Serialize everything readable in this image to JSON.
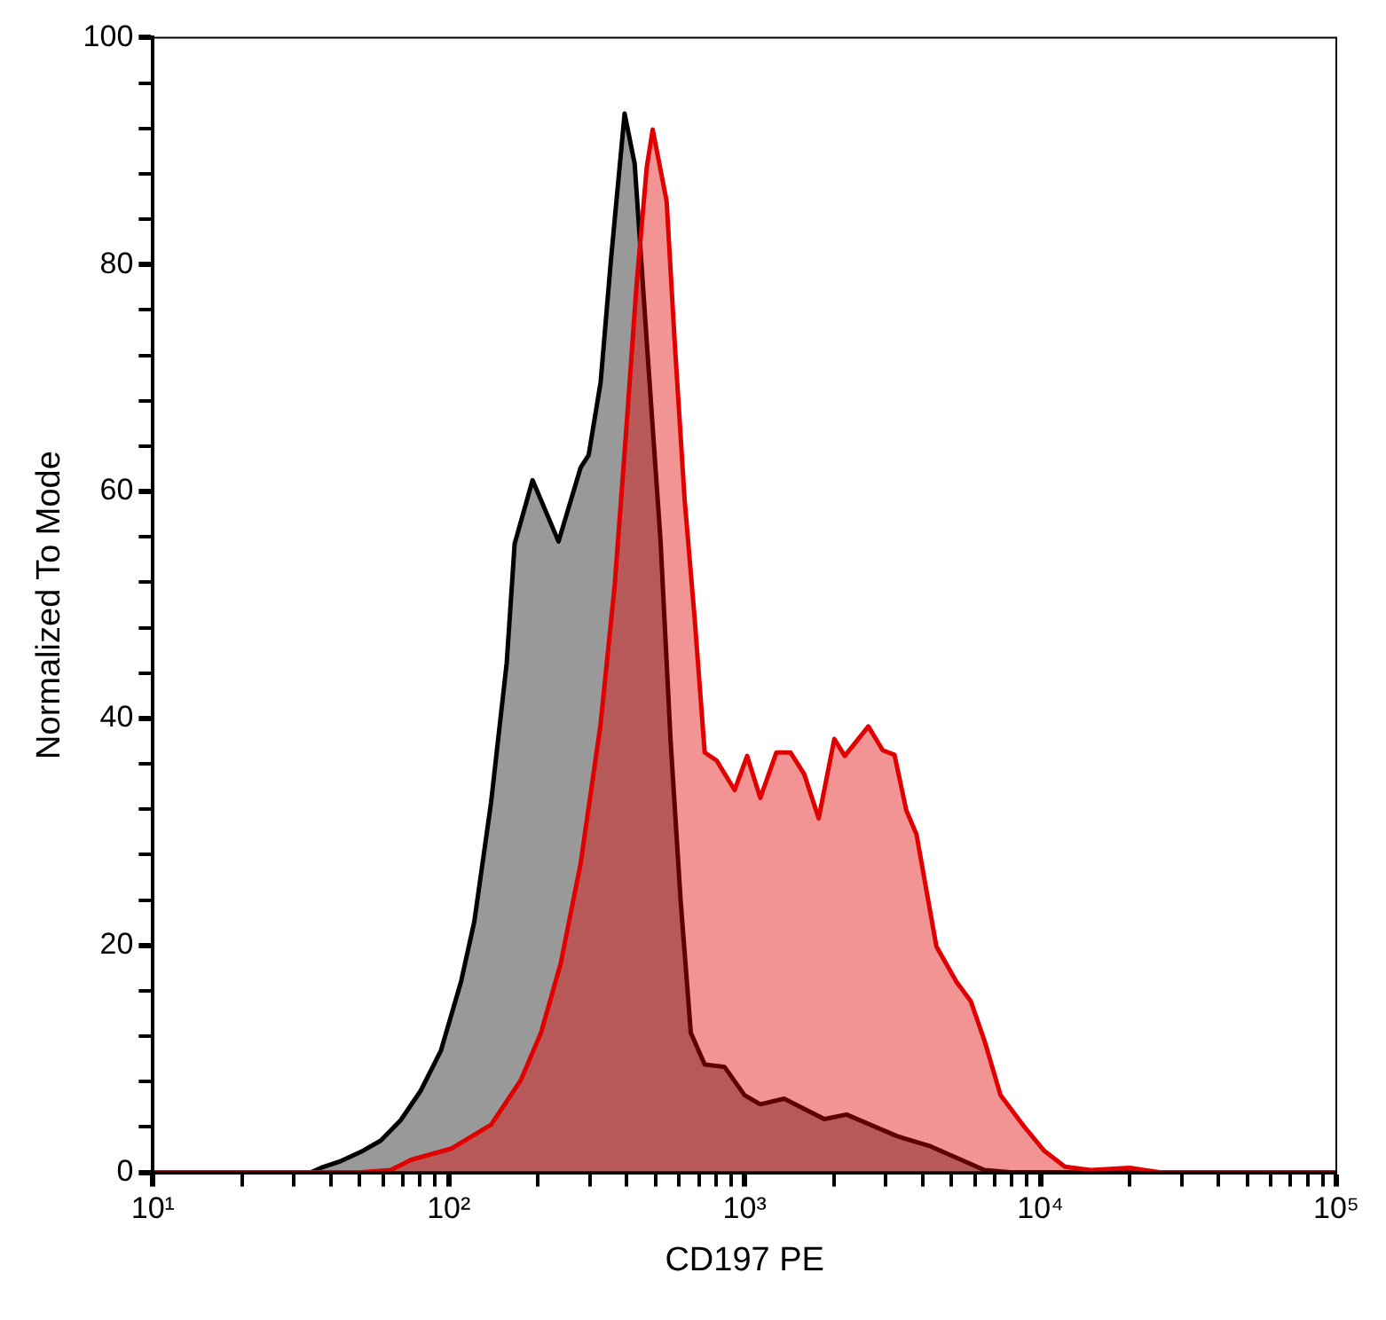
{
  "chart_data": {
    "type": "area",
    "xlabel": "CD197 PE",
    "ylabel": "Normalized To Mode",
    "log": "x",
    "grid": false,
    "legend": false,
    "marker": "none",
    "line_style": "solid",
    "xlim": [
      10,
      100000
    ],
    "ylim": [
      0,
      100
    ],
    "xticks": [
      {
        "value": 10,
        "label": "10¹"
      },
      {
        "value": 20,
        "label": null
      },
      {
        "value": 30,
        "label": null
      },
      {
        "value": 40,
        "label": null
      },
      {
        "value": 50,
        "label": null
      },
      {
        "value": 60,
        "label": null
      },
      {
        "value": 70,
        "label": null
      },
      {
        "value": 80,
        "label": null
      },
      {
        "value": 90,
        "label": null
      },
      {
        "value": 100,
        "label": "10²"
      },
      {
        "value": 200,
        "label": null
      },
      {
        "value": 300,
        "label": null
      },
      {
        "value": 400,
        "label": null
      },
      {
        "value": 500,
        "label": null
      },
      {
        "value": 600,
        "label": null
      },
      {
        "value": 700,
        "label": null
      },
      {
        "value": 800,
        "label": null
      },
      {
        "value": 900,
        "label": null
      },
      {
        "value": 1000,
        "label": "10³"
      },
      {
        "value": 2000,
        "label": null
      },
      {
        "value": 3000,
        "label": null
      },
      {
        "value": 4000,
        "label": null
      },
      {
        "value": 5000,
        "label": null
      },
      {
        "value": 6000,
        "label": null
      },
      {
        "value": 7000,
        "label": null
      },
      {
        "value": 8000,
        "label": null
      },
      {
        "value": 9000,
        "label": null
      },
      {
        "value": 10000,
        "label": "10⁴"
      },
      {
        "value": 20000,
        "label": null
      },
      {
        "value": 30000,
        "label": null
      },
      {
        "value": 40000,
        "label": null
      },
      {
        "value": 50000,
        "label": null
      },
      {
        "value": 60000,
        "label": null
      },
      {
        "value": 70000,
        "label": null
      },
      {
        "value": 80000,
        "label": null
      },
      {
        "value": 90000,
        "label": null
      },
      {
        "value": 100000,
        "label": "10⁵"
      }
    ],
    "yticks": [
      0,
      {
        "value": 4,
        "label": null
      },
      {
        "value": 8,
        "label": null
      },
      {
        "value": 12,
        "label": null
      },
      {
        "value": 16,
        "label": null
      },
      20,
      {
        "value": 24,
        "label": null
      },
      {
        "value": 28,
        "label": null
      },
      {
        "value": 32,
        "label": null
      },
      {
        "value": 36,
        "label": null
      },
      40,
      {
        "value": 44,
        "label": null
      },
      {
        "value": 48,
        "label": null
      },
      {
        "value": 52,
        "label": null
      },
      {
        "value": 56,
        "label": null
      },
      60,
      {
        "value": 64,
        "label": null
      },
      {
        "value": 68,
        "label": null
      },
      {
        "value": 72,
        "label": null
      },
      {
        "value": 76,
        "label": null
      },
      80,
      {
        "value": 84,
        "label": null
      },
      {
        "value": 88,
        "label": null
      },
      {
        "value": 92,
        "label": null
      },
      {
        "value": 96,
        "label": null
      },
      100
    ],
    "series": [
      {
        "color": "#000000",
        "x": [
          10,
          34.2,
          37,
          43.2,
          50.4,
          58.9,
          68.8,
          80.4,
          94,
          110,
          122,
          139,
          157,
          167,
          192,
          235,
          279,
          297,
          326,
          353,
          393,
          425,
          467,
          520,
          562,
          608,
          658,
          733,
          855,
          1000,
          1130,
          1360,
          1860,
          2210,
          3270,
          4250,
          6470,
          7920,
          100000
        ],
        "values": [
          0,
          0,
          0.4,
          1,
          1.8,
          2.8,
          4.6,
          7.2,
          10.7,
          16.8,
          22.1,
          32.6,
          44.9,
          55.4,
          61,
          55.6,
          62.1,
          63.2,
          69.6,
          80.3,
          93.3,
          88.9,
          73.2,
          55.6,
          38.1,
          23.9,
          12.3,
          9.5,
          9.3,
          6.8,
          6,
          6.5,
          4.7,
          5.1,
          3.2,
          2.3,
          0.2,
          0,
          0
        ]
      },
      {
        "color": "#e00000",
        "x": [
          10,
          50.4,
          63.7,
          74.5,
          102,
          139,
          175,
          205,
          239,
          279,
          326,
          364,
          399,
          431,
          467,
          489,
          545,
          580,
          627,
          678,
          733,
          804,
          925,
          1020,
          1130,
          1280,
          1430,
          1590,
          1780,
          2010,
          2180,
          2620,
          2930,
          3210,
          3520,
          3810,
          4450,
          5200,
          5810,
          6470,
          7330,
          8830,
          10300,
          12100,
          14800,
          20100,
          22400,
          25400,
          100000
        ],
        "values": [
          0,
          0,
          0.2,
          1.1,
          2.1,
          4.2,
          8.1,
          12.3,
          18.4,
          27.2,
          39.5,
          51.8,
          65.8,
          78.1,
          88.6,
          91.9,
          85.6,
          73.3,
          59.3,
          48.8,
          37,
          36.3,
          33.7,
          36.7,
          33,
          37,
          37,
          35.1,
          31.2,
          38.2,
          36.7,
          39.3,
          37.2,
          36.8,
          31.9,
          29.8,
          19.9,
          16.8,
          15.1,
          11.6,
          6.8,
          4,
          1.9,
          0.5,
          0.2,
          0.4,
          0.2,
          0,
          0
        ]
      }
    ]
  }
}
